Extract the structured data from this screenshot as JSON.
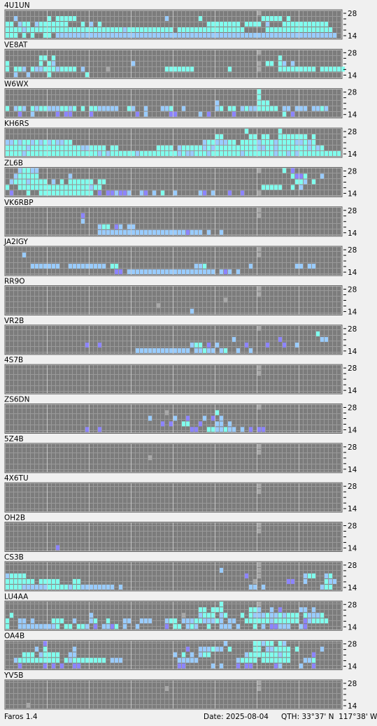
{
  "beacons": [
    {
      "name": "4U1UN",
      "rows": [
        "............................................................g",
        "..b.......c.ccccc.....................b.......c..............ccccc.c",
        "cc.bcc.bccccccc...c.b.c.........................cccccccc.cccc.b...ccccccccccc",
        "ccccbcccccccccccccccccccccccbccccccccccc.cccccccccccccccc.....cccccccccccccccc",
        "ccc.c.c..cc.bbbbbbbbbbbbbbbbbbbbbbbbbbbbbbbbbbbbbbbbbbbbbbbbbbbbbbbbbbbbbbbbbbb"
      ]
    },
    {
      "name": "VE8AT",
      "rows": [
        "............................................................g",
        "........cc.c.....................................................c......",
        "c.......c.cb..................b.............................g.cc.cb.b",
        "c.ccb.cbbcccbcccc.b.....g.............ccccccc........c......g....ccccccccc.cccccc",
        "..b..b....c........c................................................."
      ]
    },
    {
      "name": "W6WX",
      "rows": [
        "............................................................c",
        "............................................................c",
        "..................................................b.........ccc",
        "c.bcb.cbccbbbccbc.c.ccbbbbb..cb..b...bbc..b.......bc.cc.bcbbccccc.bb.bbb.bbcb",
        "...p..b.....p.pp....p..........p.b.....pp.....b.p.....p...........c.p"
      ]
    },
    {
      "name": "KH6RS",
      "rows": [
        ".........................................................c.......c......",
        "..................................................cc......cc.cc..ccccccc.c",
        "bbcbccbcbcbcbbcc...............................bccbbbcc.ccccbcccbccccbbcbc",
        "cccccbccccccccccccbbcccc.cc.........cccc.bcccccbcbccccccccccbbccbcccccccbcbc",
        "ccccbcccccccccccccccccbcbccccccbcccccccccbcbbcccbcccccccbcccccccbccbcbcccccccccc"
      ]
    },
    {
      "name": "ZL6B",
      "rows": [
        "...bccbb....................................................g.....c.p",
        "..bccccc.......b....................................................cppc...b",
        ".bcccbcccc.b.c.cccccc.cc.............................................ccb.c..",
        "c..cccccccccccccccccbcc......................................ccccc..c.b",
        ".p...c..ccccccccccccc.p.ppbppb..bp.b.c..b.....bp.b...p..p...g"
      ]
    },
    {
      "name": "VK6RBP",
      "rows": [
        "............................................................g",
        "..................p.........................................g",
        "..................b..................................................",
        "......................bcc.pb.bb..............................",
        "......................bbbbbbbbbbbbbbbbbbbbbpbbb.b..b........."
      ]
    },
    {
      "name": "JA2IGY",
      "rows": [
        "............................................................g",
        "....b.......................................................g",
        "...........................................................",
        "......bbbbbbb..bbbbbbbbb.cc..................bbc..........b..........bb.bb",
        "..........................pp.bbbbbbbbbbbbbbbbbbbbb.bpb.b..................."
      ]
    },
    {
      "name": "RR9O",
      "rows": [
        "............................................................g",
        "............................................................g",
        "....................................................g.......",
        "....................................g.......................",
        "............................................b"
      ]
    },
    {
      "name": "VR2B",
      "rows": [
        "............................................................g",
        "..........................................................................c",
        "......................................................b..........p.........bb",
        "...................p..p.....................bcc.p.b......p....p...p..b",
        "...............................bbbbbbbbbbbbb.bbcbb.bc..b..b......."
      ]
    },
    {
      "name": "4S7B",
      "rows": [
        "............................................................g",
        "............................................................g",
        "...........................................................",
        "...........................................................",
        "..........................................................."
      ]
    },
    {
      "name": "ZS6DN",
      "rows": [
        "............................................................g",
        "......................................g...........c.......",
        "..................................b.....b..p...b.p.b..........",
        ".....................................p.p..cc..p...bb.b...........",
        "...................p..p.....................pp..ccbbcbb.b.p.pp...."
      ]
    },
    {
      "name": "5Z4B",
      "rows": [
        "............................................................g",
        "............................................................g",
        "..................................g........................",
        "...........................................................",
        "..........................................................."
      ]
    },
    {
      "name": "4X6TU",
      "rows": [
        "............................................................g",
        "............................................................g",
        "...........................................................",
        "...........................................................",
        "..........................................................."
      ]
    },
    {
      "name": "OH2B",
      "rows": [
        "............................................................g",
        "............................................................g",
        "...........................................................",
        "...........................................................",
        "............p.............................................."
      ]
    },
    {
      "name": "CS3B",
      "rows": [
        "............................................................g",
        "...................................................b........g",
        "bcccc....................................................p..g..........bcc..bc",
        "ccccccc.ccccc...cc.........................................g.......pp..b....cbb",
        "ccccbbbbbbcccccbccbbbbbbbb.b..............................bb.b.............bcc"
      ]
    },
    {
      "name": "LU4AA",
      "rows": [
        "...................................................c........g",
        "..............................................cc.ccc......ccb..b.p....bb.b.",
        ".c..................b.....................g...bccc.bc...c.cbbbcbbcbccc.cbbbc",
        "c..bb.b....ccc..b...bc..c...bb..bbb...bcc.bbbccbbbcb.bb..ccccccbcccccc.pbcccc.",
        "c..bbbbbbbbbc.cc.ccb.p.bbpc.b..b......p.cc.bcb..c..bbb.b...c.b.ppbbb..bp"
      ]
    },
    {
      "name": "OA4B",
      "rows": [
        ".........p..........................................b......ccbcc.cb..........",
        ".......b.c......b..........................p..bbbcbb.c.....cc.bbcccc.c.....b",
        "....ccc.bcccc..bb.......................b.c.b.bcc........bcccccccbcc.....p",
        "..bcccccccccc.cbcccccccc.bbb.............bbbbb.........bcccc.ccccccc...bbc.....",
        "...p.....p.p.p..pp.......................pp......b.b...p.pp.....pb....b..p"
      ]
    },
    {
      "name": "YV5B",
      "rows": [
        "............................................................g",
        "......................................g.....................g",
        "...........................................................",
        "...........................................................",
        ".....g....................................................."
      ]
    }
  ],
  "band_labels": {
    "top": "28",
    "bottom": "14"
  },
  "palette": {
    "c": "#80ffee",
    "b": "#99ccff",
    "p": "#8c84ff",
    "g": "#a8a8a8"
  },
  "footer": {
    "app": "Faros 1.4",
    "date": "Date: 2025-08-04",
    "qth": "QTH: 33°37' N  117°38' W"
  }
}
